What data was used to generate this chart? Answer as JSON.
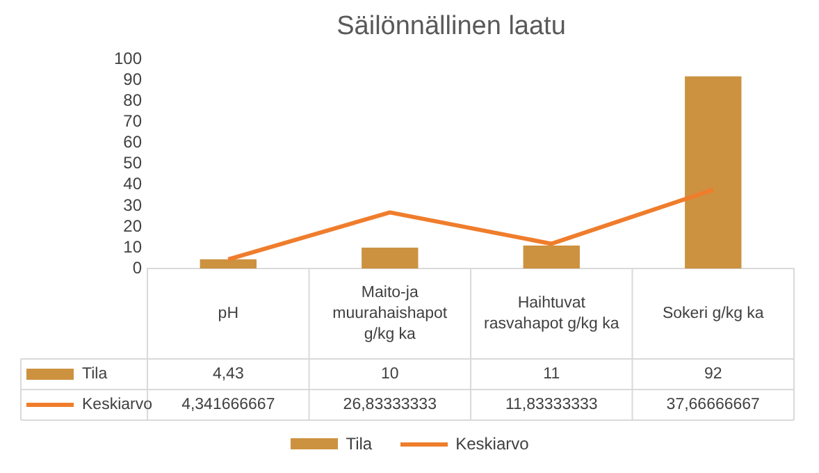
{
  "chart_data": {
    "type": "bar",
    "title": "Säilönnällinen laatu",
    "categories": [
      "pH",
      "Maito-ja muurahaishapot g/kg ka",
      "Haihtuvat rasvahapot g/kg ka",
      "Sokeri g/kg ka"
    ],
    "series": [
      {
        "name": "Tila",
        "color": "#cc9240",
        "values": [
          4.43,
          10,
          11,
          92
        ],
        "value_labels": [
          "4,43",
          "10",
          "11",
          "92"
        ]
      },
      {
        "name": "Keskiarvo",
        "type": "line",
        "color": "#ef7d2c",
        "values": [
          4.341666667,
          26.83333333,
          11.83333333,
          37.66666667
        ],
        "value_labels": [
          "4,341666667",
          "26,83333333",
          "11,83333333",
          "37,66666667"
        ]
      }
    ],
    "ylim": [
      0,
      100
    ],
    "yticks": [
      0,
      10,
      20,
      30,
      40,
      50,
      60,
      70,
      80,
      90,
      100
    ],
    "grid": false,
    "legend": "bottom",
    "marker": "none"
  }
}
